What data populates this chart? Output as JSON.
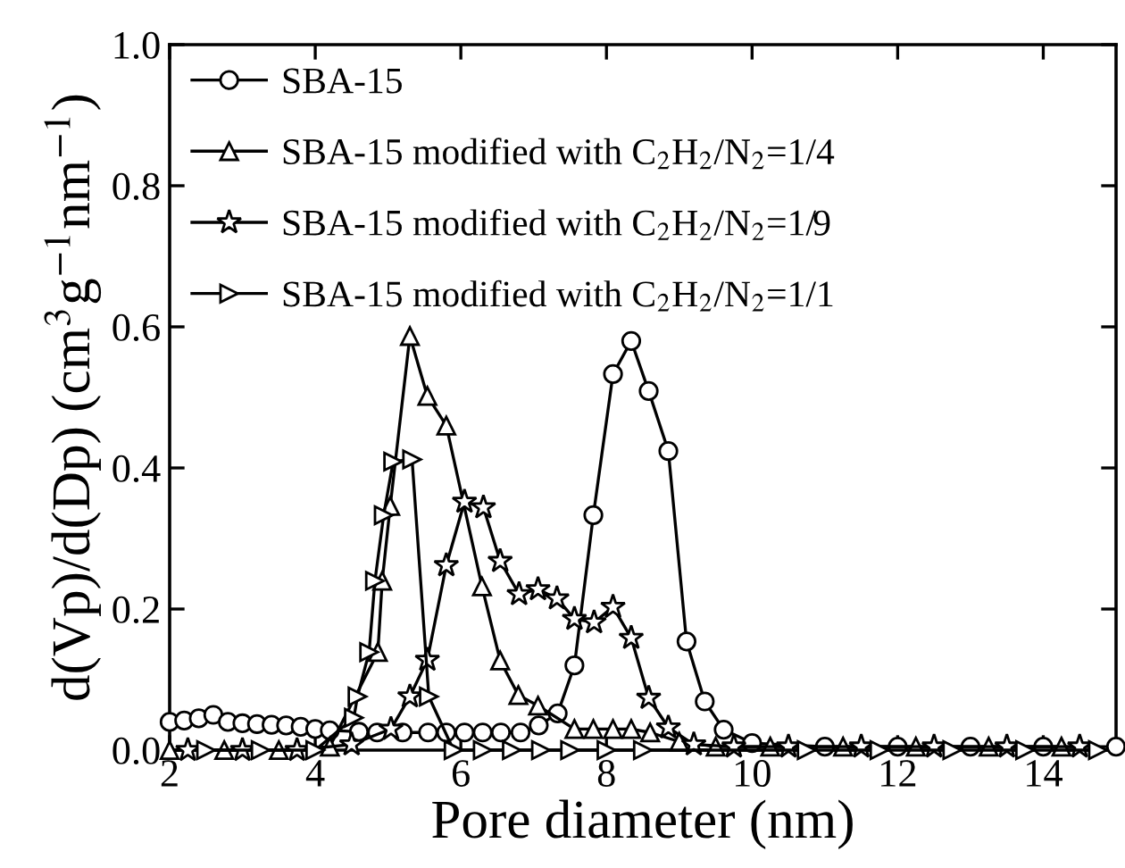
{
  "chart_data": {
    "type": "line",
    "xlabel": "Pore diameter (nm)",
    "ylabel": "d(Vp)/d(Dp) (cm$^{3}$g$^{−1}$nm$^{−1}$)",
    "xlim": [
      2,
      15
    ],
    "ylim": [
      0,
      1.0
    ],
    "xticks": [
      2,
      4,
      6,
      8,
      10,
      12,
      14
    ],
    "yticks": [
      {
        "value": 0,
        "label": "0.0"
      },
      {
        "value": 0.2,
        "label": "0.2"
      },
      {
        "value": 0.4,
        "label": "0.4"
      },
      {
        "value": 0.6,
        "label": "0.6"
      },
      {
        "value": 0.8,
        "label": "0.8"
      },
      {
        "value": 1.0,
        "label": "1.0"
      }
    ],
    "grid": false,
    "legend": "top left",
    "line_style": "solid",
    "series": [
      {
        "name": "SBA-15",
        "marker": "circle",
        "color": "#000000",
        "x": [
          2.0,
          2.2,
          2.4,
          2.6,
          2.8,
          3.0,
          3.2,
          3.4,
          3.6,
          3.8,
          4.0,
          4.2,
          4.6,
          4.85,
          5.2,
          5.55,
          5.8,
          6.05,
          6.3,
          6.55,
          6.82,
          7.07,
          7.33,
          7.56,
          7.82,
          8.09,
          8.34,
          8.58,
          8.85,
          9.1,
          9.35,
          9.61,
          10.0,
          11.0,
          12.0,
          13.0,
          14.0,
          15.0
        ],
        "values": [
          0.04,
          0.042,
          0.045,
          0.05,
          0.04,
          0.038,
          0.037,
          0.036,
          0.035,
          0.033,
          0.03,
          0.028,
          0.026,
          0.025,
          0.025,
          0.025,
          0.025,
          0.025,
          0.025,
          0.025,
          0.025,
          0.035,
          0.052,
          0.12,
          0.333,
          0.533,
          0.58,
          0.509,
          0.424,
          0.154,
          0.069,
          0.029,
          0.01,
          0.005,
          0.005,
          0.005,
          0.005,
          0.005
        ]
      },
      {
        "name": "SBA-15 modified with C$_{2}$H$_{2}$/N$_{2}$=1/4",
        "marker": "triangle",
        "color": "#000000",
        "x": [
          2.0,
          2.75,
          3.5,
          4.2,
          4.86,
          4.92,
          5.03,
          5.3,
          5.54,
          5.8,
          6.29,
          6.54,
          6.79,
          7.06,
          7.56,
          7.82,
          8.09,
          8.34,
          8.6,
          9.0,
          9.5,
          10.25,
          11.25,
          12.25,
          13.25,
          14.25
        ],
        "values": [
          0.0,
          0.0,
          0.0,
          0.005,
          0.139,
          0.24,
          0.346,
          0.587,
          0.502,
          0.46,
          0.232,
          0.127,
          0.078,
          0.063,
          0.03,
          0.03,
          0.03,
          0.03,
          0.025,
          0.012,
          0.005,
          0.005,
          0.005,
          0.005,
          0.005,
          0.005
        ]
      },
      {
        "name": "SBA-15 modified with C$_{2}$H$_{2}$/N$_{2}$=1/9",
        "marker": "star",
        "color": "#000000",
        "x": [
          2.25,
          3.0,
          3.75,
          4.5,
          5.04,
          5.3,
          5.54,
          5.8,
          6.05,
          6.31,
          6.54,
          6.8,
          7.06,
          7.32,
          7.56,
          7.83,
          8.09,
          8.34,
          8.58,
          8.85,
          9.2,
          9.75,
          10.5,
          11.5,
          12.5,
          13.5,
          14.5
        ],
        "values": [
          0.0,
          0.0,
          0.0,
          0.008,
          0.03,
          0.076,
          0.128,
          0.262,
          0.352,
          0.344,
          0.268,
          0.221,
          0.228,
          0.215,
          0.186,
          0.181,
          0.203,
          0.159,
          0.074,
          0.032,
          0.008,
          0.005,
          0.005,
          0.005,
          0.005,
          0.005,
          0.005
        ]
      },
      {
        "name": "SBA-15 modified with C$_{2}$H$_{2}$/N$_{2}$=1/1",
        "color": "#000000",
        "x": [
          2.5,
          3.25,
          4.0,
          4.53,
          4.58,
          4.74,
          4.82,
          4.94,
          5.07,
          5.33,
          5.56,
          5.9,
          6.3,
          6.7,
          7.1,
          7.5,
          8.0,
          8.5,
          10.75,
          11.75,
          12.75,
          13.75,
          14.75
        ],
        "values": [
          0.0,
          0.0,
          0.0,
          0.046,
          0.076,
          0.139,
          0.24,
          0.333,
          0.409,
          0.412,
          0.076,
          0.0,
          0.0,
          0.0,
          0.0,
          0.0,
          0.0,
          0.0,
          0.0,
          0.0,
          0.0,
          0.0,
          0.0
        ]
      }
    ]
  }
}
